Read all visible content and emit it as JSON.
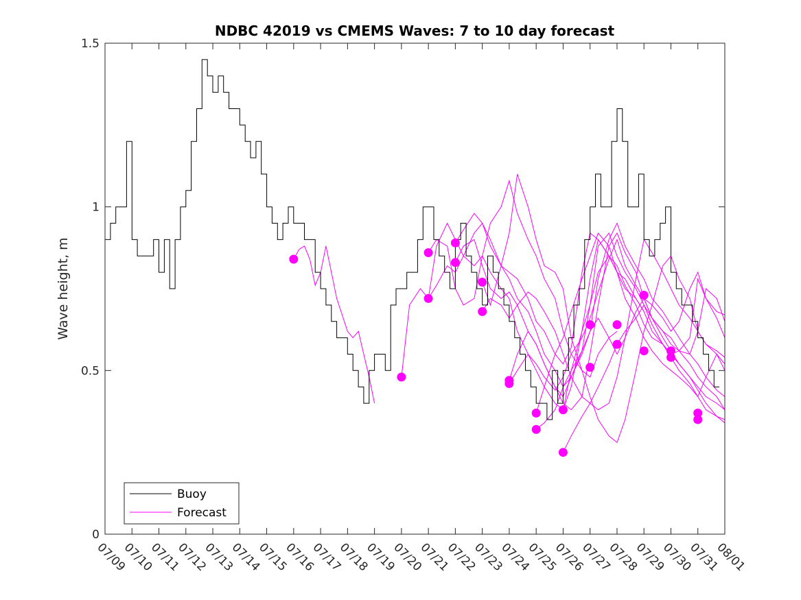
{
  "chart_data": {
    "type": "line",
    "title": "NDBC 42019 vs CMEMS Waves: 7 to 10 day forecast",
    "ylabel": "Wave height, m",
    "xlabel": "",
    "x_unit": "days since 07/09",
    "xlim": [
      0,
      23
    ],
    "ylim": [
      0,
      1.5
    ],
    "yticks": [
      0,
      0.5,
      1,
      1.5
    ],
    "ytick_labels": [
      "0",
      "0.5",
      "1",
      "1.5"
    ],
    "xticks": [
      0,
      1,
      2,
      3,
      4,
      5,
      6,
      7,
      8,
      9,
      10,
      11,
      12,
      13,
      14,
      15,
      16,
      17,
      18,
      19,
      20,
      21,
      22,
      23
    ],
    "xtick_labels": [
      "07/09",
      "07/10",
      "07/11",
      "07/12",
      "07/13",
      "07/14",
      "07/15",
      "07/16",
      "07/17",
      "07/18",
      "07/19",
      "07/20",
      "07/21",
      "07/22",
      "07/23",
      "07/24",
      "07/25",
      "07/26",
      "07/27",
      "07/28",
      "07/29",
      "07/30",
      "07/31",
      "08/01"
    ],
    "grid": false,
    "legend_position": "bottom-left",
    "colors": {
      "buoy": "#000000",
      "forecast": "#ff00ff"
    },
    "buoy": {
      "name": "Buoy",
      "x": [
        0,
        0.2,
        0.4,
        0.6,
        0.8,
        1.0,
        1.2,
        1.4,
        1.6,
        1.8,
        2.0,
        2.2,
        2.4,
        2.6,
        2.8,
        3.0,
        3.2,
        3.4,
        3.6,
        3.8,
        4.0,
        4.2,
        4.4,
        4.6,
        4.8,
        5.0,
        5.2,
        5.4,
        5.6,
        5.8,
        6.0,
        6.2,
        6.4,
        6.6,
        6.8,
        7.0,
        7.2,
        7.4,
        7.6,
        7.8,
        8.0,
        8.2,
        8.4,
        8.6,
        8.8,
        9.0,
        9.2,
        9.4,
        9.6,
        9.8,
        10.0,
        10.2,
        10.4,
        10.6,
        10.8,
        11.0,
        11.2,
        11.4,
        11.6,
        11.8,
        12.0,
        12.2,
        12.4,
        12.6,
        12.8,
        13.0,
        13.2,
        13.4,
        13.6,
        13.8,
        14.0,
        14.2,
        14.4,
        14.6,
        14.8,
        15.0,
        15.2,
        15.4,
        15.6,
        15.8,
        16.0,
        16.2,
        16.4,
        16.6,
        16.8,
        17.0,
        17.2,
        17.4,
        17.6,
        17.8,
        18.0,
        18.2,
        18.4,
        18.6,
        18.8,
        19.0,
        19.2,
        19.4,
        19.6,
        19.8,
        20.0,
        20.2,
        20.4,
        20.6,
        20.8,
        21.0,
        21.2,
        21.4,
        21.6,
        21.8,
        22.0,
        22.2,
        22.4,
        22.6,
        22.8
      ],
      "y": [
        0.9,
        0.95,
        1.0,
        1.0,
        1.2,
        0.9,
        0.85,
        0.85,
        0.85,
        0.9,
        0.8,
        0.9,
        0.75,
        0.9,
        1.0,
        1.05,
        1.2,
        1.3,
        1.45,
        1.4,
        1.35,
        1.4,
        1.35,
        1.3,
        1.3,
        1.25,
        1.2,
        1.15,
        1.2,
        1.1,
        1.0,
        0.95,
        0.9,
        0.95,
        1.0,
        0.95,
        0.95,
        0.9,
        0.9,
        0.8,
        0.75,
        0.7,
        0.65,
        0.6,
        0.6,
        0.55,
        0.5,
        0.45,
        0.4,
        0.5,
        0.55,
        0.55,
        0.5,
        0.7,
        0.75,
        0.75,
        0.8,
        0.8,
        0.9,
        1.0,
        1.0,
        0.9,
        0.85,
        0.8,
        0.75,
        0.9,
        0.95,
        0.85,
        0.8,
        0.75,
        0.7,
        0.85,
        0.8,
        0.75,
        0.7,
        0.65,
        0.6,
        0.55,
        0.5,
        0.45,
        0.4,
        0.4,
        0.35,
        0.5,
        0.4,
        0.5,
        0.6,
        0.7,
        0.75,
        0.9,
        1.0,
        1.1,
        1.0,
        1.0,
        1.2,
        1.3,
        1.2,
        1.0,
        1.0,
        1.1,
        0.9,
        0.85,
        0.9,
        0.95,
        1.0,
        0.8,
        0.75,
        0.7,
        0.7,
        0.65,
        0.6,
        0.55,
        0.5,
        0.45,
        0.45
      ]
    },
    "forecast": {
      "name": "Forecast",
      "series": [
        {
          "x": [
            7.0,
            7.2,
            7.4,
            7.6,
            7.8,
            8.0,
            8.2,
            8.4,
            8.6,
            8.8,
            9.0,
            9.2,
            9.4,
            9.6,
            9.8,
            10.0
          ],
          "y": [
            0.84,
            0.87,
            0.88,
            0.84,
            0.76,
            0.8,
            0.88,
            0.8,
            0.72,
            0.67,
            0.62,
            0.6,
            0.62,
            0.55,
            0.48,
            0.4
          ]
        },
        {
          "x": [
            11.0,
            11.3,
            11.7,
            12.0,
            12.3,
            12.7,
            13.0,
            13.3,
            13.7,
            14.0,
            14.3,
            14.7,
            15.0,
            15.3,
            15.7,
            16.0,
            16.3,
            16.7,
            17.0,
            17.3,
            17.7,
            18.0,
            18.3,
            18.7,
            19.0,
            19.3,
            19.7,
            20.0
          ],
          "y": [
            0.48,
            0.7,
            0.75,
            0.72,
            0.76,
            0.82,
            0.8,
            0.85,
            0.92,
            0.95,
            0.9,
            0.82,
            0.8,
            0.78,
            0.72,
            0.65,
            0.62,
            0.55,
            0.52,
            0.57,
            0.8,
            0.92,
            0.9,
            0.85,
            0.8,
            0.78,
            0.72,
            0.68
          ]
        },
        {
          "x": [
            12.0,
            12.3,
            12.7,
            13.0,
            13.3,
            13.7,
            14.0,
            14.3,
            14.7,
            15.0,
            15.3,
            15.7,
            16.0,
            16.3,
            16.7,
            17.0,
            17.3,
            17.7,
            18.0,
            18.3,
            18.7,
            19.0,
            19.3,
            19.7,
            20.0,
            20.3,
            20.7,
            21.0,
            21.3,
            21.7,
            22.0,
            22.3,
            22.7,
            23.0
          ],
          "y": [
            0.72,
            0.88,
            0.95,
            0.9,
            0.85,
            0.82,
            0.85,
            0.8,
            0.75,
            0.72,
            0.62,
            0.55,
            0.5,
            0.45,
            0.4,
            0.38,
            0.45,
            0.62,
            0.78,
            0.9,
            0.85,
            0.8,
            0.75,
            0.72,
            0.68,
            0.62,
            0.58,
            0.55,
            0.52,
            0.48,
            0.45,
            0.42,
            0.4,
            0.38
          ]
        },
        {
          "x": [
            12.0,
            12.3,
            12.7,
            13.0,
            13.3,
            13.7,
            14.0,
            14.3,
            14.7,
            15.0,
            15.3,
            15.7,
            16.0,
            16.3,
            16.7,
            17.0,
            17.3,
            17.7,
            18.0,
            18.3,
            18.7,
            19.0
          ],
          "y": [
            0.86,
            0.9,
            0.88,
            0.75,
            0.7,
            0.72,
            0.85,
            0.95,
            1.0,
            1.08,
            0.98,
            0.9,
            0.85,
            0.78,
            0.72,
            0.62,
            0.55,
            0.5,
            0.48,
            0.55,
            0.6,
            0.62
          ]
        },
        {
          "x": [
            13.0,
            13.3,
            13.7,
            14.0,
            14.3,
            14.7,
            15.0,
            15.3,
            15.7,
            16.0,
            16.3,
            16.7,
            17.0,
            17.3,
            17.7,
            18.0,
            18.3,
            18.7,
            19.0,
            19.3,
            19.7,
            20.0,
            20.3,
            20.7,
            21.0,
            21.3,
            21.7,
            22.0,
            22.3,
            22.7,
            23.0
          ],
          "y": [
            0.89,
            0.93,
            0.98,
            0.95,
            0.88,
            0.82,
            0.78,
            0.72,
            0.68,
            0.62,
            0.55,
            0.5,
            0.45,
            0.48,
            0.55,
            0.62,
            0.78,
            0.9,
            0.95,
            0.88,
            0.82,
            0.78,
            0.72,
            0.68,
            0.64,
            0.6,
            0.55,
            0.52,
            0.48,
            0.44,
            0.42
          ]
        },
        {
          "x": [
            13.0,
            13.3,
            13.7,
            14.0,
            14.3,
            14.7,
            15.0,
            15.3,
            15.7,
            16.0,
            16.3,
            16.7,
            17.0,
            17.3,
            17.7,
            18.0,
            18.3,
            18.7,
            19.0,
            19.3,
            19.7,
            20.0,
            20.3,
            20.7,
            21.0,
            21.3,
            21.7,
            22.0,
            22.3,
            22.7,
            23.0
          ],
          "y": [
            0.83,
            0.88,
            0.9,
            0.82,
            0.75,
            0.72,
            0.74,
            0.7,
            0.62,
            0.58,
            0.52,
            0.45,
            0.42,
            0.48,
            0.56,
            0.7,
            0.88,
            0.92,
            0.85,
            0.8,
            0.75,
            0.7,
            0.66,
            0.62,
            0.6,
            0.56,
            0.52,
            0.48,
            0.45,
            0.42,
            0.38
          ]
        },
        {
          "x": [
            14.0,
            14.3,
            14.7,
            15.0,
            15.3,
            15.7,
            16.0,
            16.3,
            16.7,
            17.0,
            17.3,
            17.7,
            18.0,
            18.3,
            18.7,
            19.0,
            19.3,
            19.7,
            20.0,
            20.3,
            20.7,
            21.0,
            21.3,
            21.7,
            22.0,
            22.3,
            22.7,
            23.0
          ],
          "y": [
            0.77,
            0.7,
            0.82,
            0.92,
            1.1,
            1.0,
            0.9,
            0.82,
            0.8,
            0.75,
            0.6,
            0.5,
            0.42,
            0.35,
            0.3,
            0.28,
            0.35,
            0.5,
            0.62,
            0.7,
            0.82,
            0.85,
            0.78,
            0.72,
            0.62,
            0.58,
            0.55,
            0.52
          ]
        },
        {
          "x": [
            14.0,
            14.3,
            14.7,
            15.0,
            15.3,
            15.7,
            16.0,
            16.3,
            16.7,
            17.0,
            17.3,
            17.7,
            18.0,
            18.3,
            18.7,
            19.0,
            19.3,
            19.7,
            20.0,
            20.3,
            20.7,
            21.0,
            21.3,
            21.7,
            22.0,
            22.3,
            22.7,
            23.0
          ],
          "y": [
            0.68,
            0.72,
            0.7,
            0.66,
            0.7,
            0.74,
            0.72,
            0.68,
            0.62,
            0.55,
            0.48,
            0.42,
            0.4,
            0.38,
            0.4,
            0.48,
            0.6,
            0.78,
            0.9,
            0.86,
            0.8,
            0.75,
            0.7,
            0.66,
            0.62,
            0.58,
            0.56,
            0.54
          ]
        },
        {
          "x": [
            15.0,
            15.3,
            15.7,
            16.0,
            16.3,
            16.7,
            17.0,
            17.3,
            17.7,
            18.0,
            18.3,
            18.7,
            19.0,
            19.3,
            19.7,
            20.0,
            20.3,
            20.7,
            21.0,
            21.3,
            21.7,
            22.0,
            22.3,
            22.7,
            23.0
          ],
          "y": [
            0.47,
            0.55,
            0.62,
            0.58,
            0.52,
            0.45,
            0.4,
            0.38,
            0.42,
            0.55,
            0.7,
            0.88,
            0.92,
            0.86,
            0.8,
            0.72,
            0.66,
            0.62,
            0.58,
            0.56,
            0.55,
            0.62,
            0.75,
            0.72,
            0.65
          ]
        },
        {
          "x": [
            15.0,
            15.3,
            15.7,
            16.0,
            16.3,
            16.7,
            17.0,
            17.3,
            17.7,
            18.0,
            18.3,
            18.7,
            19.0,
            19.3,
            19.7,
            20.0,
            20.3,
            20.7,
            21.0,
            21.3,
            21.7,
            22.0,
            22.3,
            22.7,
            23.0
          ],
          "y": [
            0.46,
            0.5,
            0.55,
            0.52,
            0.48,
            0.44,
            0.48,
            0.55,
            0.6,
            0.66,
            0.74,
            0.84,
            0.9,
            0.82,
            0.76,
            0.72,
            0.7,
            0.66,
            0.62,
            0.65,
            0.75,
            0.8,
            0.72,
            0.68,
            0.67
          ]
        },
        {
          "x": [
            16.0,
            16.3,
            16.7,
            17.0,
            17.3,
            17.7,
            18.0,
            18.3,
            18.7,
            19.0,
            19.3,
            19.7,
            20.0,
            20.3,
            20.7,
            21.0,
            21.3,
            21.7,
            22.0,
            22.3,
            22.7,
            23.0
          ],
          "y": [
            0.37,
            0.45,
            0.55,
            0.6,
            0.68,
            0.78,
            0.85,
            0.92,
            0.88,
            0.8,
            0.72,
            0.66,
            0.6,
            0.56,
            0.52,
            0.5,
            0.48,
            0.45,
            0.42,
            0.48,
            0.55,
            0.5
          ]
        },
        {
          "x": [
            16.0,
            16.3,
            16.7,
            17.0,
            17.3,
            17.7,
            18.0,
            18.3,
            18.7,
            19.0,
            19.3,
            19.7,
            20.0,
            20.3,
            20.7,
            21.0,
            21.3,
            21.7,
            22.0,
            22.3,
            22.7,
            23.0
          ],
          "y": [
            0.32,
            0.34,
            0.38,
            0.45,
            0.5,
            0.56,
            0.62,
            0.66,
            0.6,
            0.55,
            0.6,
            0.68,
            0.72,
            0.66,
            0.6,
            0.56,
            0.52,
            0.48,
            0.44,
            0.4,
            0.36,
            0.34
          ]
        },
        {
          "x": [
            17.0,
            17.3,
            17.7,
            18.0,
            18.3,
            18.7,
            19.0,
            19.3,
            19.7,
            20.0,
            20.3,
            20.7,
            21.0,
            21.3,
            21.7,
            22.0,
            22.3,
            22.7,
            23.0
          ],
          "y": [
            0.38,
            0.5,
            0.62,
            0.7,
            0.8,
            0.85,
            0.82,
            0.76,
            0.7,
            0.64,
            0.6,
            0.58,
            0.55,
            0.56,
            0.6,
            0.78,
            0.72,
            0.66,
            0.6
          ]
        },
        {
          "x": [
            17.0,
            17.3,
            17.7,
            18.0,
            18.3,
            18.7,
            19.0,
            19.3,
            19.7,
            20.0,
            20.3,
            20.7,
            21.0,
            21.3,
            21.7,
            22.0,
            22.3,
            22.7,
            23.0
          ],
          "y": [
            0.25,
            0.3,
            0.36,
            0.4,
            0.45,
            0.52,
            0.58,
            0.62,
            0.66,
            0.7,
            0.64,
            0.58,
            0.54,
            0.5,
            0.46,
            0.42,
            0.38,
            0.36,
            0.35
          ]
        }
      ],
      "markers": {
        "x": [
          7.0,
          11.0,
          12.0,
          12.0,
          13.0,
          13.0,
          14.0,
          14.0,
          15.0,
          15.0,
          16.0,
          16.0,
          17.0,
          17.0,
          18.0,
          18.0,
          19.0,
          19.0,
          20.0,
          20.0,
          21.0,
          21.0,
          22.0,
          22.0
        ],
        "y": [
          0.84,
          0.48,
          0.72,
          0.86,
          0.89,
          0.83,
          0.77,
          0.68,
          0.47,
          0.46,
          0.37,
          0.32,
          0.38,
          0.25,
          0.64,
          0.51,
          0.64,
          0.58,
          0.73,
          0.56,
          0.56,
          0.54,
          0.37,
          0.35
        ]
      }
    },
    "legend": [
      "Buoy",
      "Forecast"
    ]
  }
}
